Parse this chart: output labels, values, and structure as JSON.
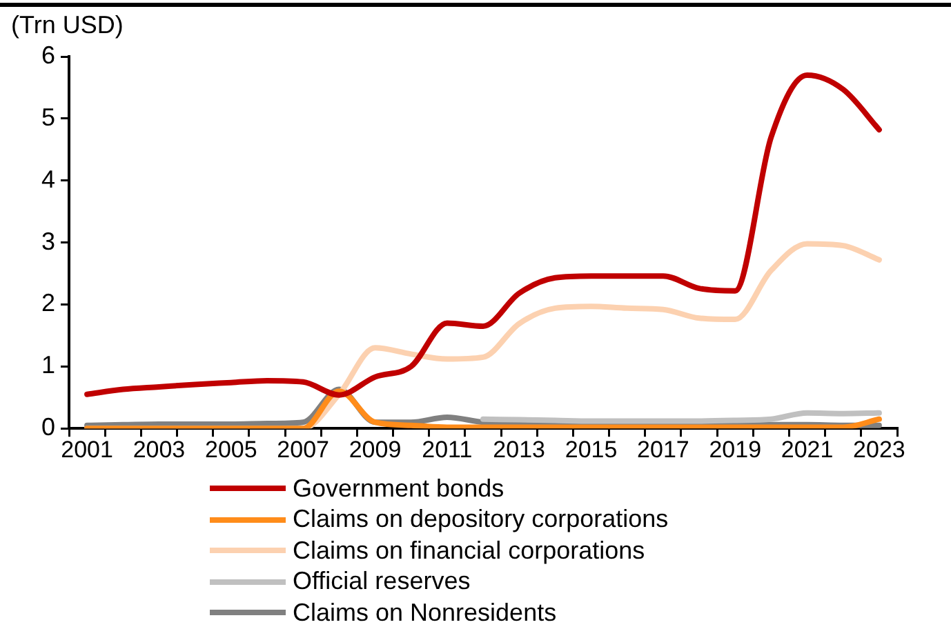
{
  "chart_data": {
    "type": "line",
    "ylabel": "(Trn USD)",
    "categories": [
      "2001",
      null,
      "2003",
      null,
      "2005",
      null,
      "2007",
      null,
      "2009",
      null,
      "2011",
      null,
      "2013",
      null,
      "2015",
      null,
      "2017",
      null,
      "2019",
      null,
      "2021",
      null,
      "2023"
    ],
    "series": [
      {
        "name": "Government bonds",
        "color": "#c00000",
        "values": [
          0.55,
          0.63,
          0.67,
          0.71,
          0.74,
          0.77,
          0.75,
          0.54,
          0.83,
          1.0,
          1.7,
          1.65,
          2.18,
          2.43,
          2.46,
          2.46,
          2.46,
          2.26,
          2.22,
          4.7,
          5.7,
          5.47,
          4.82
        ]
      },
      {
        "name": "Claims on depository corporations",
        "color": "#ff8c1a",
        "values": [
          0,
          0,
          0,
          0,
          0,
          0,
          0,
          0.6,
          0.1,
          0.05,
          0.02,
          0.02,
          0.02,
          0.02,
          0.02,
          0.02,
          0.02,
          0.02,
          0.02,
          0.02,
          0.02,
          0.02,
          0.15
        ]
      },
      {
        "name": "Claims on financial corporations",
        "color": "#fcd1b0",
        "values": [
          0,
          0,
          0,
          0,
          0,
          0,
          0,
          0.55,
          1.3,
          1.2,
          1.12,
          1.15,
          1.69,
          1.94,
          1.97,
          1.94,
          1.92,
          1.78,
          1.76,
          2.55,
          2.98,
          2.95,
          2.72
        ]
      },
      {
        "name": "Official reserves",
        "color": "#c0c0c0",
        "values": [
          null,
          null,
          null,
          null,
          null,
          null,
          null,
          null,
          null,
          null,
          null,
          0.15,
          0.14,
          0.13,
          0.12,
          0.12,
          0.12,
          0.12,
          0.13,
          0.15,
          0.25,
          0.24,
          0.25
        ]
      },
      {
        "name": "Claims on Nonresidents",
        "color": "#808080",
        "values": [
          0.05,
          0.06,
          0.07,
          0.07,
          0.07,
          0.08,
          0.1,
          0.63,
          0.1,
          0.1,
          0.18,
          0.1,
          0.08,
          0.07,
          0.07,
          0.07,
          0.07,
          0.07,
          0.07,
          0.06,
          0.06,
          0.05,
          0.05
        ]
      }
    ],
    "ylim": [
      0,
      6
    ],
    "yticks": [
      0,
      1,
      2,
      3,
      4,
      5,
      6
    ],
    "grid": false,
    "legend": "bottom"
  }
}
